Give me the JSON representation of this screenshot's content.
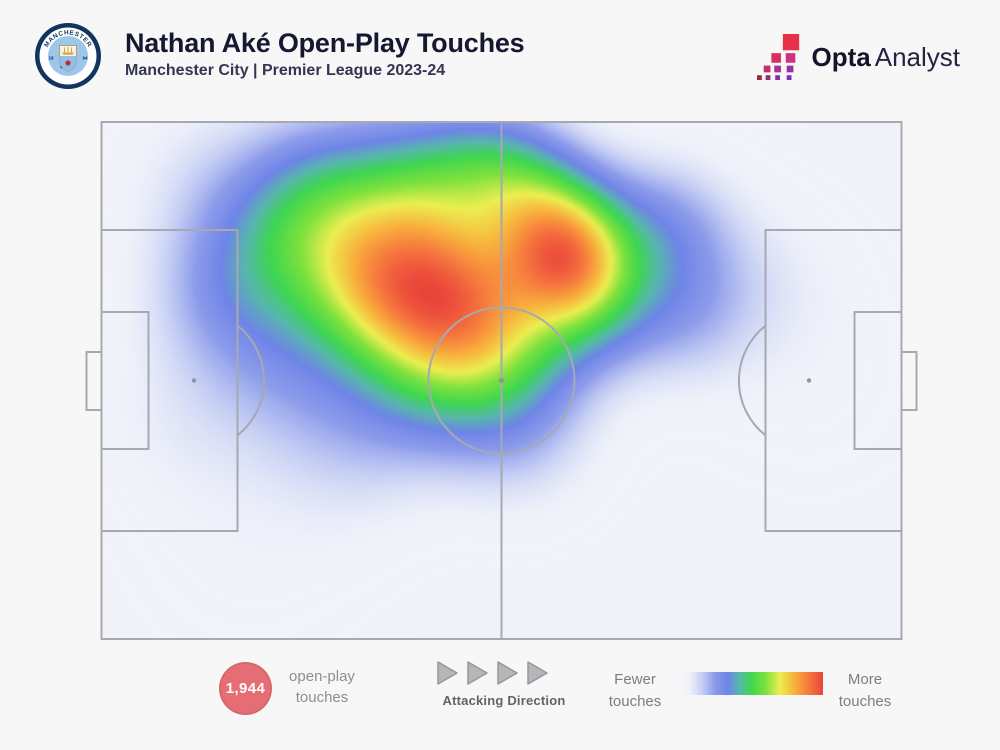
{
  "header": {
    "title": "Nathan Aké Open-Play Touches",
    "subtitle": "Manchester City | Premier League 2023-24",
    "club_badge": {
      "club": "Manchester City",
      "top_text": "MANCHESTER",
      "bottom_text": "CITY",
      "year_left": "18",
      "year_right": "94"
    },
    "brand": {
      "name_bold": "Opta",
      "name_light": "Analyst"
    }
  },
  "footer": {
    "touches_badge": {
      "value": "1,944",
      "color": "#e56e74"
    },
    "touches_label_line1": "open-play",
    "touches_label_line2": "touches",
    "direction": {
      "label": "Attacking Direction",
      "arrows": 4
    },
    "legend": {
      "min_line1": "Fewer",
      "min_line2": "touches",
      "max_line1": "More",
      "max_line2": "touches"
    }
  },
  "chart_data": {
    "type": "heatmap",
    "title": "Nathan Aké Open-Play Touches",
    "subtitle": "Manchester City | Premier League 2023-24",
    "total_open_play_touches": 1944,
    "attacking_direction": "left-to-right",
    "legend": {
      "min_label": "Fewer touches",
      "max_label": "More touches"
    },
    "pitch": {
      "orientation": "horizontal",
      "base_color": "#f1f2f9",
      "line_color": "#a6a9b1"
    },
    "color_ramp": [
      {
        "t": 0.0,
        "c": "#ffffff",
        "a": 0
      },
      {
        "t": 0.07,
        "c": "#e9edf9",
        "a": 0.55
      },
      {
        "t": 0.15,
        "c": "#c6cff4",
        "a": 0.9
      },
      {
        "t": 0.25,
        "c": "#8c9bea",
        "a": 1
      },
      {
        "t": 0.34,
        "c": "#6e84e7",
        "a": 1
      },
      {
        "t": 0.42,
        "c": "#56b8aa",
        "a": 1
      },
      {
        "t": 0.5,
        "c": "#3ed650",
        "a": 1
      },
      {
        "t": 0.6,
        "c": "#7ce13c",
        "a": 1
      },
      {
        "t": 0.7,
        "c": "#ebee50",
        "a": 1
      },
      {
        "t": 0.8,
        "c": "#f8b23c",
        "a": 1
      },
      {
        "t": 0.9,
        "c": "#f6783e",
        "a": 1
      },
      {
        "t": 1.0,
        "c": "#e9443a",
        "a": 1
      }
    ],
    "points": [
      {
        "x": 40.4,
        "y": 32.6,
        "s": 7.7,
        "w": 1.0
      },
      {
        "x": 46.1,
        "y": 36.4,
        "s": 7.2,
        "w": 0.9
      },
      {
        "x": 33.6,
        "y": 28.7,
        "s": 7.0,
        "w": 0.85
      },
      {
        "x": 57.9,
        "y": 24.9,
        "s": 5.7,
        "w": 1.0
      },
      {
        "x": 60.4,
        "y": 34.5,
        "s": 6.0,
        "w": 0.62
      },
      {
        "x": 55.4,
        "y": 17.1,
        "s": 5.7,
        "w": 0.68
      },
      {
        "x": 40.9,
        "y": 11.6,
        "s": 6.8,
        "w": 0.68
      },
      {
        "x": 23.6,
        "y": 21.0,
        "s": 6.9,
        "w": 0.52
      },
      {
        "x": 16.1,
        "y": 32.6,
        "s": 6.9,
        "w": 0.38
      },
      {
        "x": 50.4,
        "y": 48.0,
        "s": 6.9,
        "w": 0.46
      },
      {
        "x": 39.8,
        "y": 51.8,
        "s": 6.9,
        "w": 0.33
      },
      {
        "x": 69.8,
        "y": 21.0,
        "s": 6.2,
        "w": 0.44
      },
      {
        "x": 72.3,
        "y": 36.4,
        "s": 6.2,
        "w": 0.3
      },
      {
        "x": 52.3,
        "y": 61.5,
        "s": 6.9,
        "w": 0.18
      },
      {
        "x": 31.1,
        "y": 63.4,
        "s": 7.5,
        "w": 0.16
      },
      {
        "x": 11.1,
        "y": 55.7,
        "s": 8.1,
        "w": 0.12
      },
      {
        "x": 82.3,
        "y": 30.6,
        "s": 7.5,
        "w": 0.12
      },
      {
        "x": 13.6,
        "y": 11.4,
        "s": 7.5,
        "w": 0.16
      },
      {
        "x": 24.8,
        "y": 46.1,
        "s": 7.5,
        "w": 0.3
      },
      {
        "x": 88.5,
        "y": 49.9,
        "s": 10.0,
        "w": 0.05
      },
      {
        "x": 18.6,
        "y": 80.7,
        "s": 10.0,
        "w": 0.06
      },
      {
        "x": 49.8,
        "y": 8.5,
        "s": 5.5,
        "w": 0.5
      },
      {
        "x": 28.6,
        "y": 11.0,
        "s": 6.5,
        "w": 0.4
      },
      {
        "x": 58.5,
        "y": 27.5,
        "s": 4.4,
        "w": 0.22
      }
    ]
  }
}
